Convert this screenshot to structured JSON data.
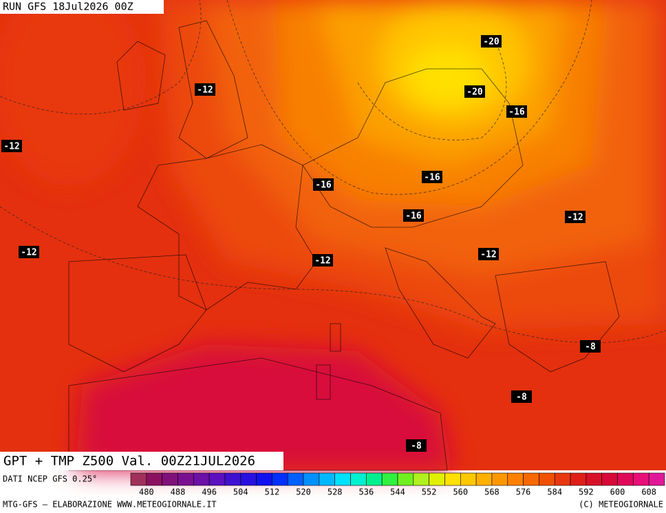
{
  "header": {
    "run": "RUN GFS 18Jul2026 00Z"
  },
  "map_title": "GPT + TMP Z500 Val. 00Z21JUL2026",
  "isotherm_labels": [
    "-12",
    "-12",
    "-12",
    "-16",
    "-16",
    "-16",
    "-12",
    "-12",
    "-12",
    "-16",
    "-20",
    "-20",
    "-8",
    "-8",
    "-8"
  ],
  "colorbar": {
    "source": "DATI NCEP GFS 0.25°",
    "colors": [
      "#a0305a",
      "#8c1060",
      "#80107a",
      "#7a1090",
      "#6c10a8",
      "#5c10c0",
      "#4010d0",
      "#2810e0",
      "#1010f0",
      "#0030ff",
      "#0060ff",
      "#0090ff",
      "#00b8ff",
      "#00e0ff",
      "#00f0d0",
      "#00f090",
      "#30f040",
      "#70f020",
      "#b0f020",
      "#e0f000",
      "#ffe000",
      "#ffc800",
      "#ffb000",
      "#ff9800",
      "#ff8000",
      "#f86800",
      "#f05000",
      "#e83810",
      "#e02018",
      "#d81028",
      "#d80838",
      "#e00858",
      "#e81078",
      "#e01898"
    ],
    "labels": [
      "480",
      "488",
      "496",
      "504",
      "512",
      "520",
      "528",
      "536",
      "544",
      "552",
      "560",
      "568",
      "576",
      "584",
      "592",
      "600",
      "608"
    ]
  },
  "footer": {
    "left": "MTG-GFS – ELABORAZIONE WWW.METEOGIORNALE.IT",
    "right": "(C) METEOGIORNALE"
  }
}
